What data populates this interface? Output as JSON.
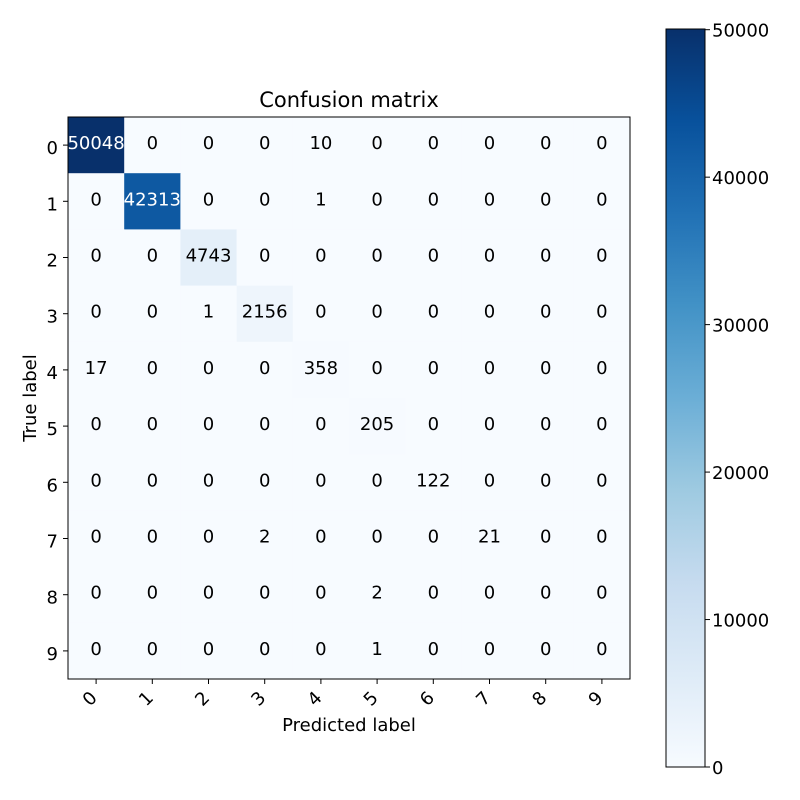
{
  "chart_data": {
    "type": "heatmap",
    "title": "Confusion matrix",
    "xlabel": "Predicted label",
    "ylabel": "True label",
    "x_tick_labels": [
      "0",
      "1",
      "2",
      "3",
      "4",
      "5",
      "6",
      "7",
      "8",
      "9"
    ],
    "y_tick_labels": [
      "0",
      "1",
      "2",
      "3",
      "4",
      "5",
      "6",
      "7",
      "8",
      "9"
    ],
    "values": [
      [
        50048,
        0,
        0,
        0,
        10,
        0,
        0,
        0,
        0,
        0
      ],
      [
        0,
        42313,
        0,
        0,
        1,
        0,
        0,
        0,
        0,
        0
      ],
      [
        0,
        0,
        4743,
        0,
        0,
        0,
        0,
        0,
        0,
        0
      ],
      [
        0,
        0,
        1,
        2156,
        0,
        0,
        0,
        0,
        0,
        0
      ],
      [
        17,
        0,
        0,
        0,
        358,
        0,
        0,
        0,
        0,
        0
      ],
      [
        0,
        0,
        0,
        0,
        0,
        205,
        0,
        0,
        0,
        0
      ],
      [
        0,
        0,
        0,
        0,
        0,
        0,
        122,
        0,
        0,
        0
      ],
      [
        0,
        0,
        0,
        2,
        0,
        0,
        0,
        21,
        0,
        0
      ],
      [
        0,
        0,
        0,
        0,
        0,
        2,
        0,
        0,
        0,
        0
      ],
      [
        0,
        0,
        0,
        0,
        0,
        1,
        0,
        0,
        0,
        0
      ]
    ],
    "colormap": "Blues",
    "color_range": [
      0,
      50048
    ],
    "colorbar_ticks": [
      "0",
      "10000",
      "20000",
      "30000",
      "40000",
      "50000"
    ],
    "grid": false,
    "colors": {
      "low": "#f7fbff",
      "high": "#08306b",
      "text_dark": "#000000",
      "text_light": "#ffffff"
    }
  }
}
